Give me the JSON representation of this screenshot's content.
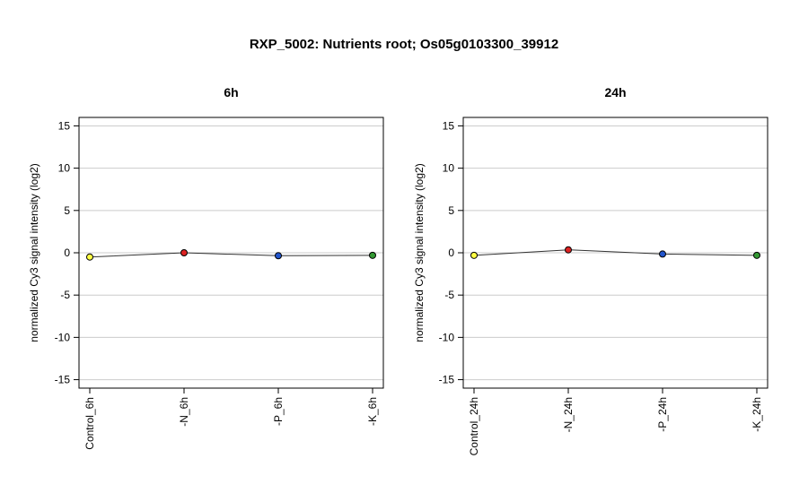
{
  "title": "RXP_5002: Nutrients root; Os05g0103300_39912",
  "chart_data": [
    {
      "type": "line",
      "title": "6h",
      "ylabel": "normalized Cy3 signal intensity (log2)",
      "xlabel": "",
      "categories": [
        "Control_6h",
        "-N_6h",
        "-P_6h",
        "-K_6h"
      ],
      "values": [
        -0.5,
        0.0,
        -0.35,
        -0.3
      ],
      "colors": [
        "#ffff44",
        "#dd2222",
        "#2255cc",
        "#339933"
      ],
      "ylim": [
        -16,
        16
      ],
      "yticks": [
        -15,
        -10,
        -5,
        0,
        5,
        10,
        15
      ],
      "grid": true
    },
    {
      "type": "line",
      "title": "24h",
      "ylabel": "normalized Cy3 signal intensity (log2)",
      "xlabel": "",
      "categories": [
        "Control_24h",
        "-N_24h",
        "-P_24h",
        "-K_24h"
      ],
      "values": [
        -0.3,
        0.35,
        -0.15,
        -0.3
      ],
      "colors": [
        "#ffff44",
        "#dd2222",
        "#2255cc",
        "#339933"
      ],
      "ylim": [
        -16,
        16
      ],
      "yticks": [
        -15,
        -10,
        -5,
        0,
        5,
        10,
        15
      ],
      "grid": true
    }
  ]
}
